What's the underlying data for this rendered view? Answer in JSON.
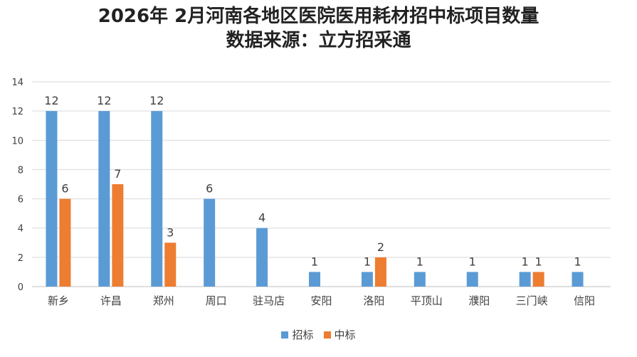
{
  "title": {
    "line1": "2026年 2月河南各地区医院医用耗材招中标项目数量",
    "line2": "数据来源：立方招采通"
  },
  "chart_data": {
    "type": "bar",
    "categories": [
      "新乡",
      "许昌",
      "郑州",
      "周口",
      "驻马店",
      "安阳",
      "洛阳",
      "平顶山",
      "濮阳",
      "三门峡",
      "信阳"
    ],
    "series": [
      {
        "name": "招标",
        "color": "#5B9BD5",
        "values": [
          12,
          12,
          12,
          6,
          4,
          1,
          1,
          1,
          1,
          1,
          1
        ]
      },
      {
        "name": "中标",
        "color": "#ED7D31",
        "values": [
          6,
          7,
          3,
          null,
          null,
          null,
          2,
          null,
          null,
          1,
          null
        ]
      }
    ],
    "yticks": [
      0,
      2,
      4,
      6,
      8,
      10,
      12,
      14
    ],
    "ylim": [
      0,
      14
    ],
    "grid": true,
    "legend_position": "bottom"
  }
}
